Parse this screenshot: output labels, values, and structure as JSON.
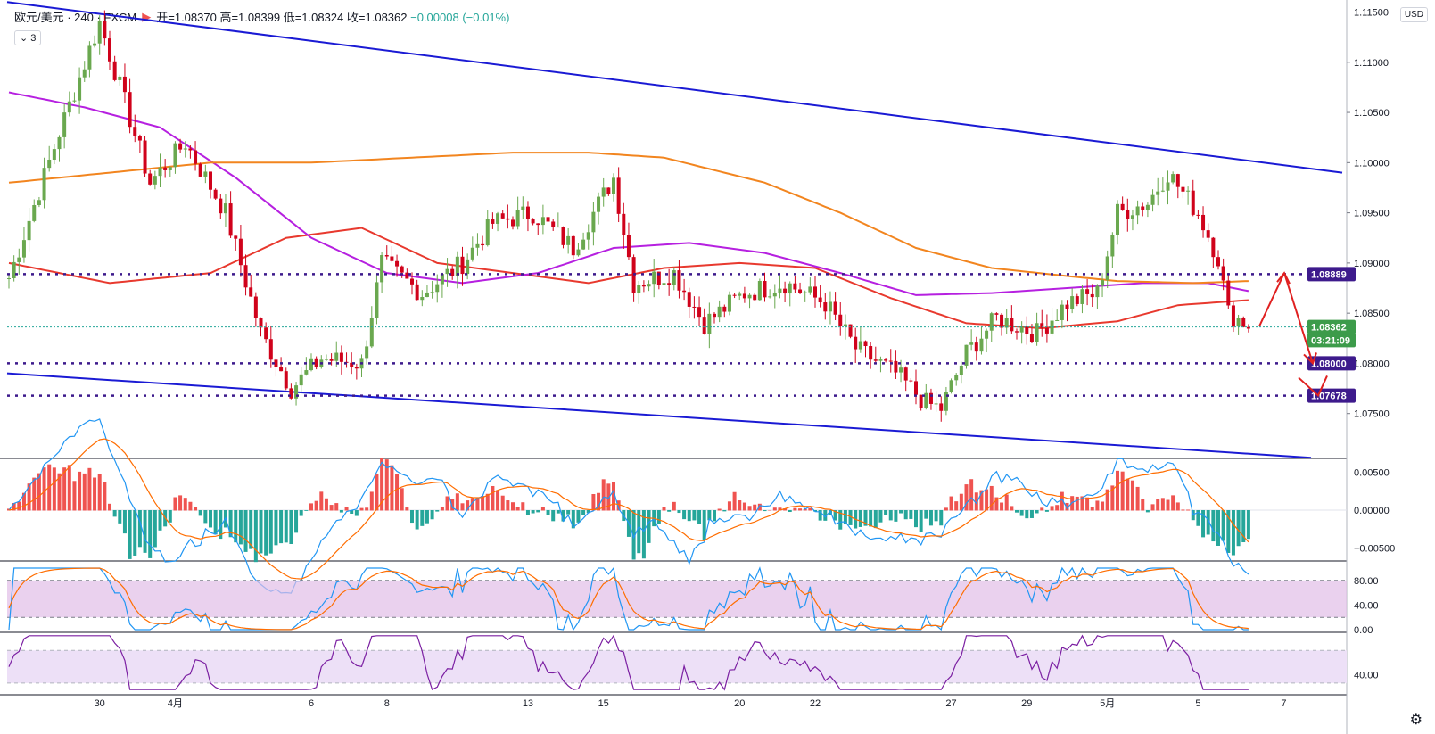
{
  "header": {
    "symbol": "欧元/美元 · 240 · FXCM",
    "open": "开=1.08370",
    "high": "高=1.08399",
    "low": "低=1.08324",
    "close": "收=1.08362",
    "change": "−0.00008 (−0.01%)",
    "indicator_count": "3",
    "flag_icon": "flag-icon"
  },
  "currency_button": "USD",
  "colors": {
    "up": "#6aa84f",
    "down": "#d0021b",
    "channel": "#1a1ad4",
    "level": "#3d1a8c",
    "ma_red": "#e8392e",
    "ma_purple": "#b620e0",
    "ma_orange": "#f2851f",
    "price_line": "#26a69a",
    "annot": "#e02020"
  },
  "price_axis": {
    "labels": [
      "1.11500",
      "1.11000",
      "1.10500",
      "1.10000",
      "1.09500",
      "1.09000",
      "1.08500",
      "1.08000",
      "1.07500"
    ],
    "badges": [
      {
        "text": "1.08889",
        "value": 1.08889,
        "color": "#3d1a8c"
      },
      {
        "text": "1.08362",
        "value": 1.08362,
        "color": "#3c9b4a"
      },
      {
        "text": "03:21:09",
        "value": 1.08232,
        "color": "#3c9b4a"
      },
      {
        "text": "1.08000",
        "value": 1.08,
        "color": "#3d1a8c"
      },
      {
        "text": "1.07678",
        "value": 1.07678,
        "color": "#3d1a8c"
      }
    ]
  },
  "macd_axis": {
    "labels": [
      "0.00500",
      "0.00000",
      "−0.00500"
    ]
  },
  "stoch_axis": {
    "labels": [
      "80.00",
      "40.00",
      "0.00"
    ]
  },
  "rsi_axis": {
    "labels": [
      "40.00"
    ]
  },
  "time_axis": {
    "labels": [
      {
        "text": "30",
        "idx": 18
      },
      {
        "text": "4月",
        "idx": 33
      },
      {
        "text": "6",
        "idx": 60
      },
      {
        "text": "8",
        "idx": 75
      },
      {
        "text": "13",
        "idx": 103
      },
      {
        "text": "15",
        "idx": 118
      },
      {
        "text": "20",
        "idx": 145
      },
      {
        "text": "22",
        "idx": 160
      },
      {
        "text": "27",
        "idx": 187
      },
      {
        "text": "29",
        "idx": 202
      },
      {
        "text": "5月",
        "idx": 218
      },
      {
        "text": "5",
        "idx": 236
      },
      {
        "text": "7",
        "idx": 253
      }
    ]
  },
  "chart_data": {
    "type": "candlestick",
    "symbol": "EUR/USD",
    "timeframe": "240",
    "horizontal_levels": [
      1.08889,
      1.08,
      1.07678
    ],
    "current_price": 1.08362,
    "price_range": [
      1.07062,
      1.1162
    ],
    "anchor_points": [
      [
        0,
        1.0885
      ],
      [
        10,
        1.103
      ],
      [
        18,
        1.114
      ],
      [
        28,
        1.098
      ],
      [
        35,
        1.102
      ],
      [
        43,
        1.095
      ],
      [
        50,
        1.083
      ],
      [
        56,
        1.0775
      ],
      [
        62,
        1.0805
      ],
      [
        70,
        1.08
      ],
      [
        74,
        1.09
      ],
      [
        82,
        1.087
      ],
      [
        90,
        1.09
      ],
      [
        96,
        1.094
      ],
      [
        104,
        1.095
      ],
      [
        112,
        1.0915
      ],
      [
        120,
        1.0985
      ],
      [
        124,
        1.088
      ],
      [
        132,
        1.089
      ],
      [
        138,
        1.084
      ],
      [
        146,
        1.087
      ],
      [
        154,
        1.088
      ],
      [
        162,
        1.086
      ],
      [
        168,
        1.0815
      ],
      [
        176,
        1.079
      ],
      [
        182,
        1.076
      ],
      [
        185,
        1.0755
      ],
      [
        190,
        1.081
      ],
      [
        196,
        1.0845
      ],
      [
        204,
        1.083
      ],
      [
        210,
        1.086
      ],
      [
        216,
        1.087
      ],
      [
        220,
        1.095
      ],
      [
        226,
        1.096
      ],
      [
        230,
        1.099
      ],
      [
        236,
        1.095
      ],
      [
        240,
        1.0905
      ],
      [
        242,
        1.085
      ],
      [
        246,
        1.0838
      ]
    ],
    "moving_averages": [
      {
        "color": "#e8392e",
        "points": [
          [
            0,
            1.09
          ],
          [
            20,
            1.088
          ],
          [
            40,
            1.089
          ],
          [
            55,
            1.0925
          ],
          [
            70,
            1.0935
          ],
          [
            85,
            1.09
          ],
          [
            100,
            1.089
          ],
          [
            115,
            1.088
          ],
          [
            130,
            1.0895
          ],
          [
            145,
            1.09
          ],
          [
            160,
            1.0895
          ],
          [
            175,
            1.0865
          ],
          [
            190,
            1.084
          ],
          [
            205,
            1.0835
          ],
          [
            220,
            1.0842
          ],
          [
            232,
            1.0858
          ],
          [
            246,
            1.0863
          ]
        ]
      },
      {
        "color": "#b620e0",
        "points": [
          [
            0,
            1.107
          ],
          [
            15,
            1.1055
          ],
          [
            30,
            1.1035
          ],
          [
            45,
            1.0985
          ],
          [
            60,
            1.0925
          ],
          [
            75,
            1.089
          ],
          [
            90,
            1.088
          ],
          [
            105,
            1.089
          ],
          [
            120,
            1.0915
          ],
          [
            135,
            1.092
          ],
          [
            150,
            1.091
          ],
          [
            165,
            1.089
          ],
          [
            180,
            1.0868
          ],
          [
            195,
            1.087
          ],
          [
            210,
            1.0875
          ],
          [
            225,
            1.088
          ],
          [
            238,
            1.088
          ],
          [
            246,
            1.0872
          ]
        ]
      },
      {
        "color": "#f2851f",
        "points": [
          [
            0,
            1.098
          ],
          [
            20,
            1.099
          ],
          [
            40,
            1.1
          ],
          [
            60,
            1.1
          ],
          [
            80,
            1.1005
          ],
          [
            100,
            1.101
          ],
          [
            115,
            1.101
          ],
          [
            130,
            1.1005
          ],
          [
            150,
            1.098
          ],
          [
            165,
            1.095
          ],
          [
            180,
            1.0915
          ],
          [
            195,
            1.0895
          ],
          [
            210,
            1.0887
          ],
          [
            220,
            1.0882
          ],
          [
            235,
            1.088
          ],
          [
            246,
            1.0882
          ]
        ]
      }
    ]
  }
}
